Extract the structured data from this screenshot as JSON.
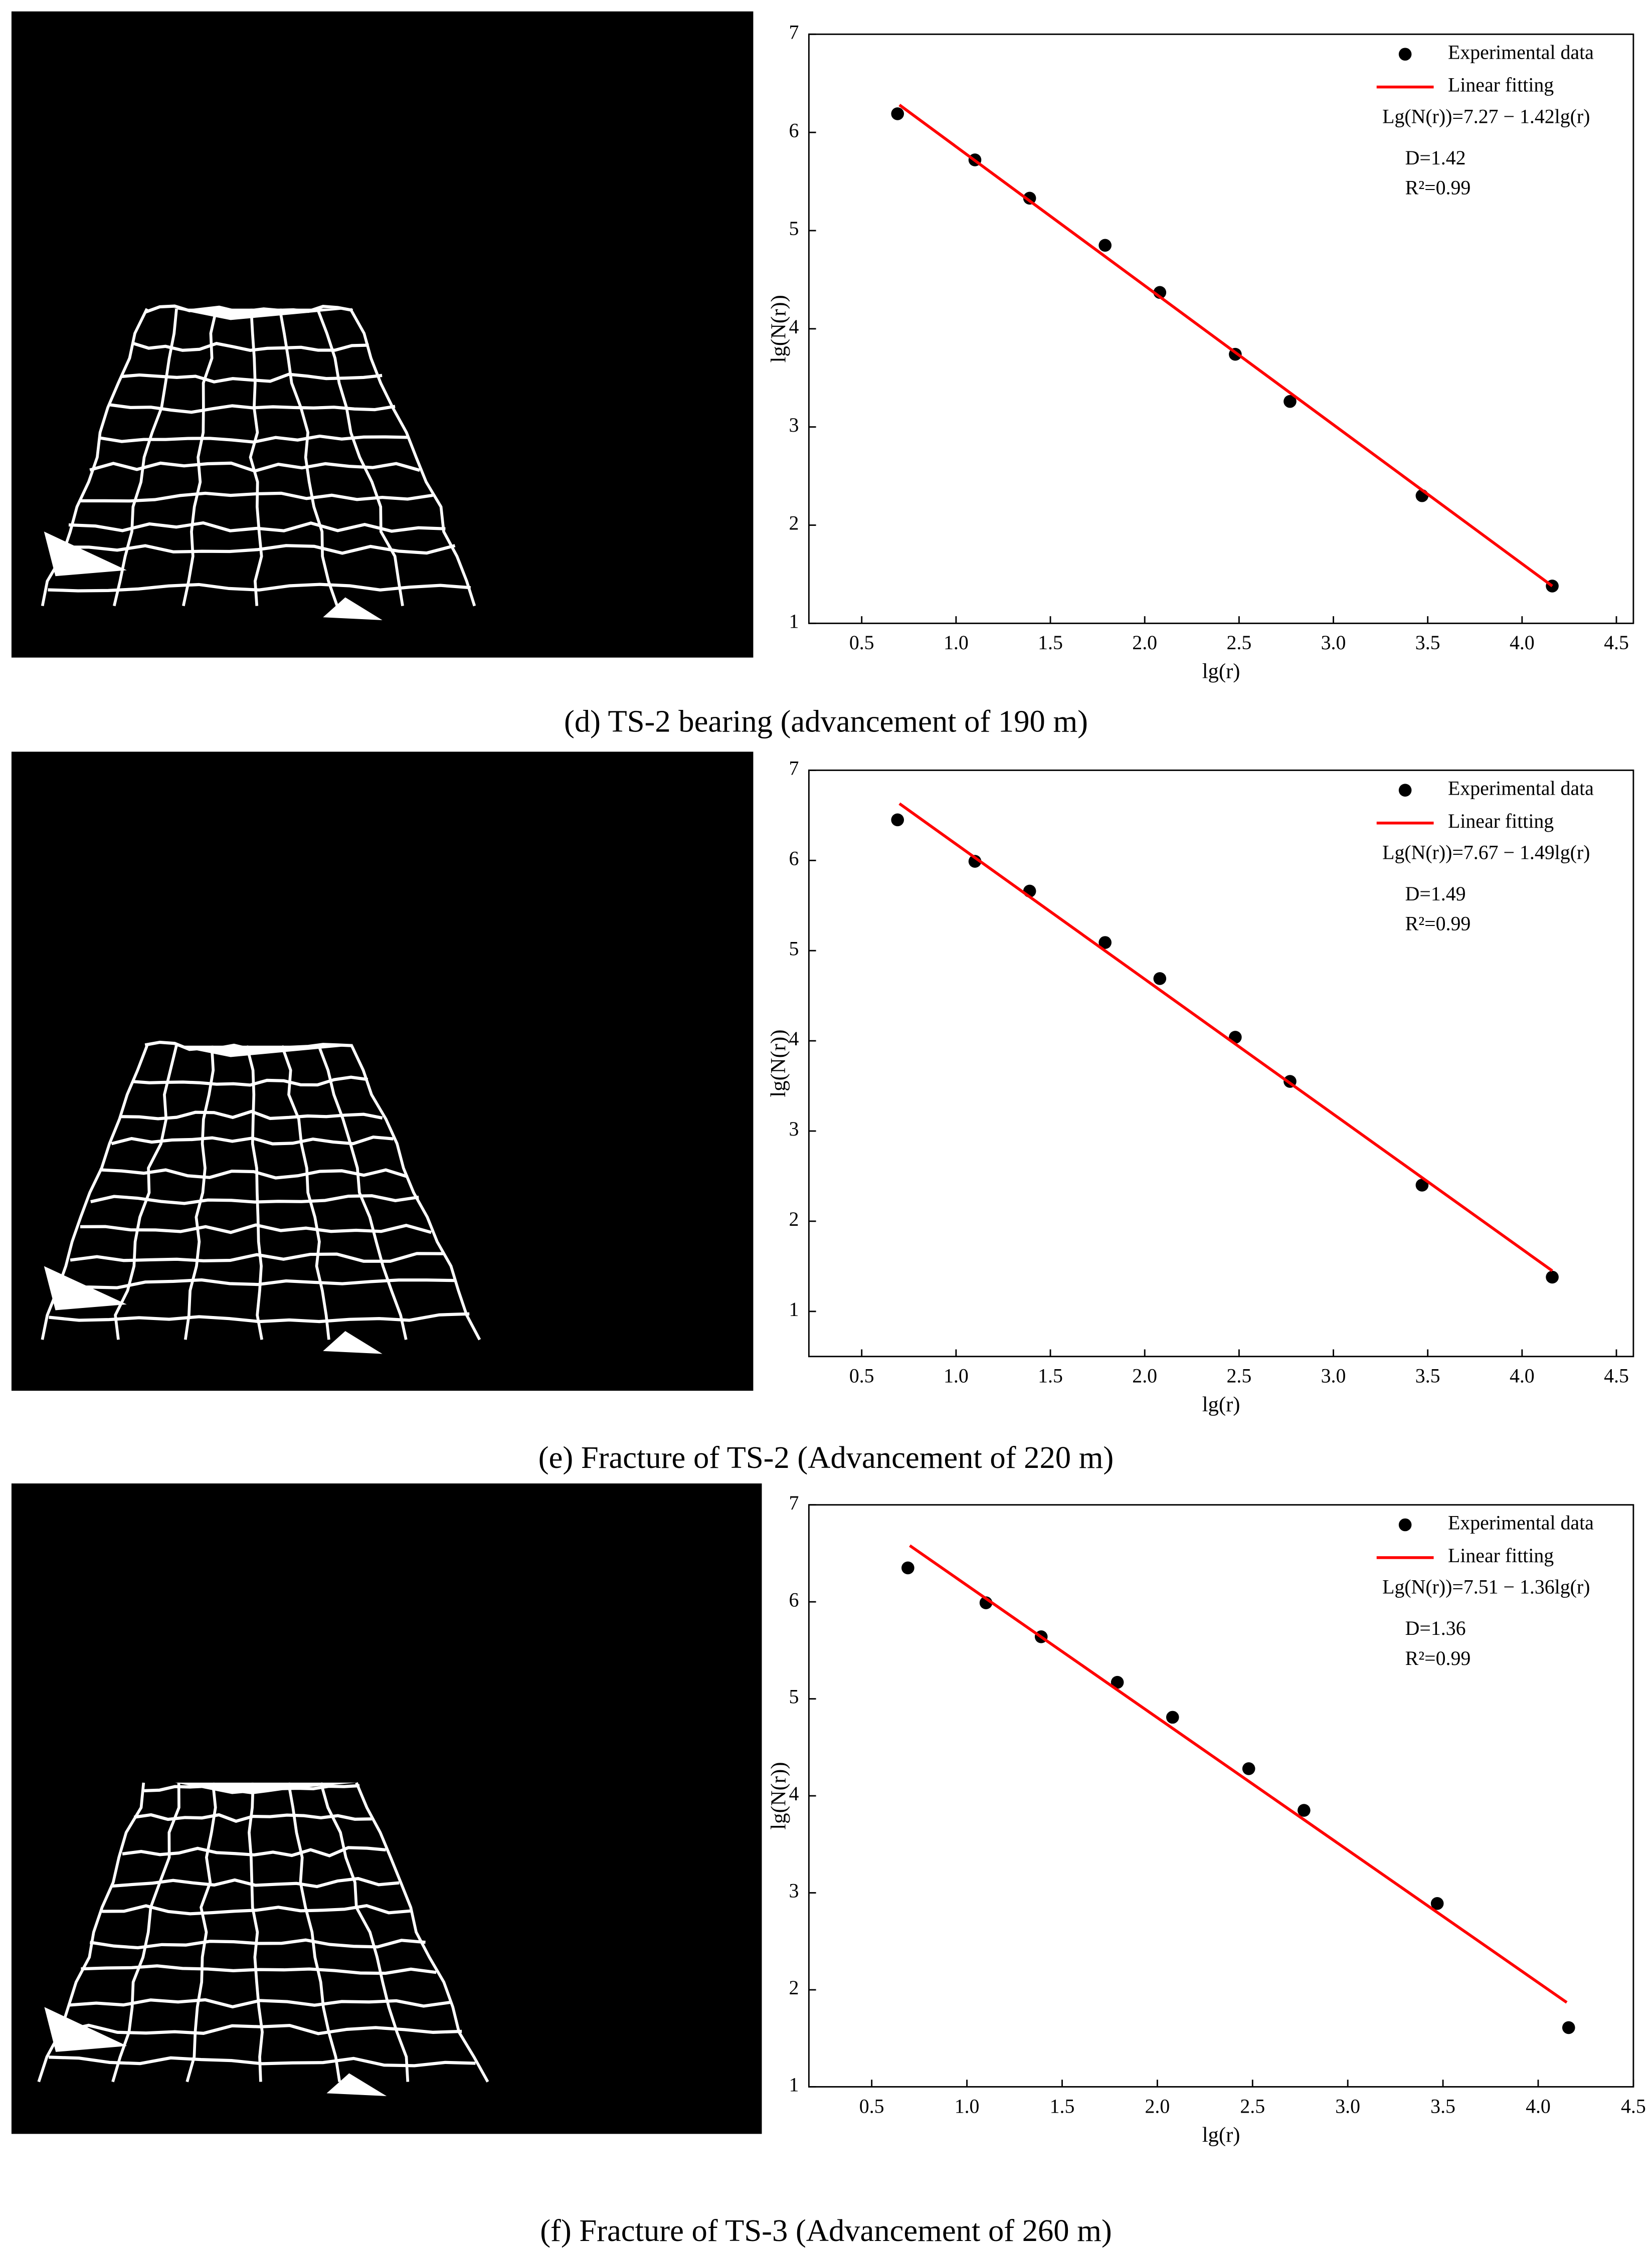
{
  "chart_data": [
    {
      "type": "scatter",
      "caption": "(d) TS-2 bearing (advancement of 190 m)",
      "xlabel": "lg(r)",
      "ylabel": "lg(N(r))",
      "xlim": [
        0.22,
        4.59
      ],
      "ylim": [
        1,
        7
      ],
      "xticks": [
        0.5,
        {
          "value": 1,
          "label": "1.0"
        },
        1.5,
        {
          "value": 2,
          "label": "2.0"
        },
        2.5,
        {
          "value": 3,
          "label": "3.0"
        },
        3.5,
        {
          "value": 4,
          "label": "4.0"
        },
        4.5
      ],
      "yticks": [
        1,
        2,
        3,
        4,
        5,
        6,
        7
      ],
      "annotations": [
        "Lg(N(r))=7.27 − 1.42lg(r)",
        "D=1.42",
        "R²=0.99"
      ],
      "legend": "upper right",
      "series": [
        {
          "name": "Experimental data",
          "type": "scatter",
          "color": "#000000",
          "x": [
            0.69,
            1.1,
            1.39,
            1.79,
            2.08,
            2.48,
            2.77,
            3.47,
            4.16
          ],
          "values": [
            6.19,
            5.72,
            5.33,
            4.85,
            4.37,
            3.74,
            3.26,
            2.3,
            1.38
          ]
        },
        {
          "name": "Linear fitting",
          "type": "line",
          "color": "#ff0000",
          "x": [
            0.7,
            4.16
          ],
          "values": [
            6.28,
            1.38
          ]
        }
      ]
    },
    {
      "type": "scatter",
      "caption": "(e) Fracture of TS-2 (Advancement of 220 m)",
      "xlabel": "lg(r)",
      "ylabel": "lg(N(r))",
      "xlim": [
        0.22,
        4.59
      ],
      "ylim": [
        0.5,
        7
      ],
      "xticks": [
        0.5,
        {
          "value": 1,
          "label": "1.0"
        },
        1.5,
        {
          "value": 2,
          "label": "2.0"
        },
        2.5,
        {
          "value": 3,
          "label": "3.0"
        },
        3.5,
        {
          "value": 4,
          "label": "4.0"
        },
        4.5
      ],
      "yticks": [
        1,
        2,
        3,
        4,
        5,
        6,
        7
      ],
      "annotations": [
        "Lg(N(r))=7.67 − 1.49lg(r)",
        "D=1.49",
        "R²=0.99"
      ],
      "legend": "upper right",
      "series": [
        {
          "name": "Experimental data",
          "type": "scatter",
          "color": "#000000",
          "x": [
            0.69,
            1.1,
            1.39,
            1.79,
            2.08,
            2.48,
            2.77,
            3.47,
            4.16
          ],
          "values": [
            6.45,
            5.99,
            5.66,
            5.09,
            4.69,
            4.04,
            3.55,
            2.4,
            1.38
          ]
        },
        {
          "name": "Linear fitting",
          "type": "line",
          "color": "#ff0000",
          "x": [
            0.7,
            4.16
          ],
          "values": [
            6.63,
            1.45
          ]
        }
      ]
    },
    {
      "type": "scatter",
      "caption": "(f) Fracture of TS-3 (Advancement of 260 m)",
      "xlabel": "lg(r)",
      "ylabel": "lg(N(r))",
      "xlim": [
        0.17,
        4.5
      ],
      "ylim": [
        1,
        7
      ],
      "xticks": [
        0.5,
        {
          "value": 1,
          "label": "1.0"
        },
        1.5,
        {
          "value": 2,
          "label": "2.0"
        },
        2.5,
        {
          "value": 3,
          "label": "3.0"
        },
        3.5,
        {
          "value": 4,
          "label": "4.0"
        },
        4.5
      ],
      "yticks": [
        1,
        2,
        3,
        4,
        5,
        6,
        7
      ],
      "annotations": [
        "Lg(N(r))=7.51 − 1.36lg(r)",
        "D=1.36",
        "R²=0.99"
      ],
      "legend": "upper right",
      "series": [
        {
          "name": "Experimental data",
          "type": "scatter",
          "color": "#000000",
          "x": [
            0.69,
            1.1,
            1.39,
            1.79,
            2.08,
            2.48,
            2.77,
            3.47,
            4.16
          ],
          "values": [
            6.35,
            5.99,
            5.64,
            5.17,
            4.81,
            4.28,
            3.85,
            2.89,
            1.61
          ]
        },
        {
          "name": "Linear fitting",
          "type": "line",
          "color": "#ff0000",
          "x": [
            0.7,
            4.15
          ],
          "values": [
            6.58,
            1.87
          ]
        }
      ]
    }
  ]
}
